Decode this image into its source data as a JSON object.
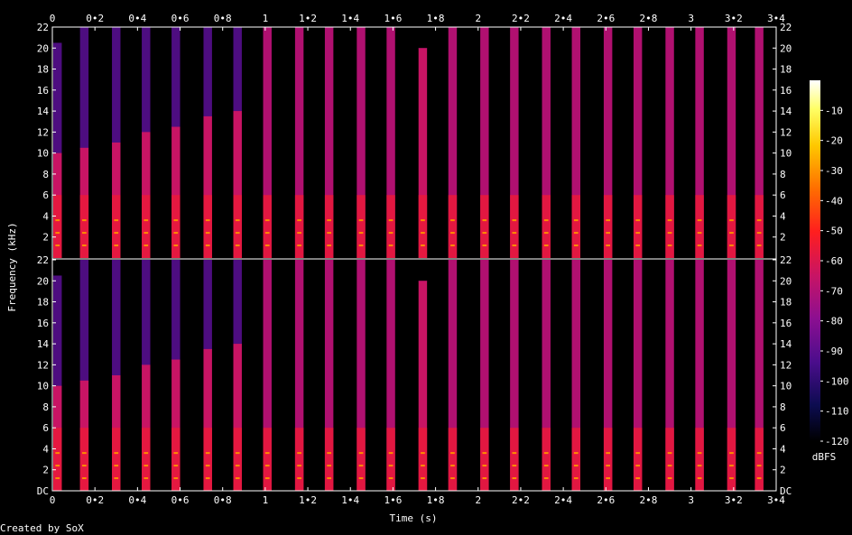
{
  "chart_data": {
    "type": "heatmap",
    "subtype": "spectrogram",
    "channels": 2,
    "xlabel": "Time (s)",
    "ylabel": "Frequency (kHz)",
    "xlim": [
      0,
      3.4
    ],
    "ylim": [
      0,
      22
    ],
    "x_ticks": [
      "0",
      "0•2",
      "0•4",
      "0•6",
      "0•8",
      "1",
      "1•2",
      "1•4",
      "1•6",
      "1•8",
      "2",
      "2•2",
      "2•4",
      "2•6",
      "2•8",
      "3",
      "3•2",
      "3•4"
    ],
    "x_tick_values": [
      0,
      0.2,
      0.4,
      0.6,
      0.8,
      1.0,
      1.2,
      1.4,
      1.6,
      1.8,
      2.0,
      2.2,
      2.4,
      2.6,
      2.8,
      3.0,
      3.2,
      3.4
    ],
    "y_ticks": [
      "DC",
      "2",
      "4",
      "6",
      "8",
      "10",
      "12",
      "14",
      "16",
      "18",
      "20",
      "22"
    ],
    "y_tick_values": [
      0,
      2,
      4,
      6,
      8,
      10,
      12,
      14,
      16,
      18,
      20,
      22
    ],
    "events": {
      "times_s": [
        0.0,
        0.15,
        0.3,
        0.44,
        0.58,
        0.73,
        0.87,
        1.01,
        1.16,
        1.3,
        1.45,
        1.59,
        1.74,
        1.88,
        2.03,
        2.17,
        2.32,
        2.46,
        2.61,
        2.75,
        2.9,
        3.04,
        3.19,
        3.32
      ],
      "duration_s": 0.04,
      "upper_band_ceiling_khz": [
        20.5,
        22,
        22,
        22,
        22,
        22,
        22,
        22,
        22,
        22,
        22,
        22,
        20,
        22,
        22,
        22,
        22,
        22,
        22,
        22,
        22,
        22,
        22,
        22
      ],
      "bright_band_ceiling_khz": [
        10,
        10.5,
        11,
        12,
        12.5,
        13.5,
        14,
        22,
        22,
        22,
        22,
        22,
        20,
        22,
        22,
        22,
        22,
        22,
        22,
        22,
        22,
        22,
        22,
        22
      ]
    },
    "colorbar": {
      "label": "dBFS",
      "ticks": [
        "-10",
        "-20",
        "-30",
        "-40",
        "-50",
        "-60",
        "-70",
        "-80",
        "-90",
        "-100",
        "-110",
        "-120"
      ],
      "range": [
        -120,
        0
      ],
      "colors": [
        "#000000",
        "#0c0c50",
        "#4b0d8c",
        "#8c0f91",
        "#c81464",
        "#ff1e1e",
        "#ff6e00",
        "#ffc800",
        "#ffff64",
        "#ffffff"
      ]
    },
    "grid": false,
    "legend": "colorbar-right"
  },
  "footer": {
    "credit": "Created by SoX"
  }
}
